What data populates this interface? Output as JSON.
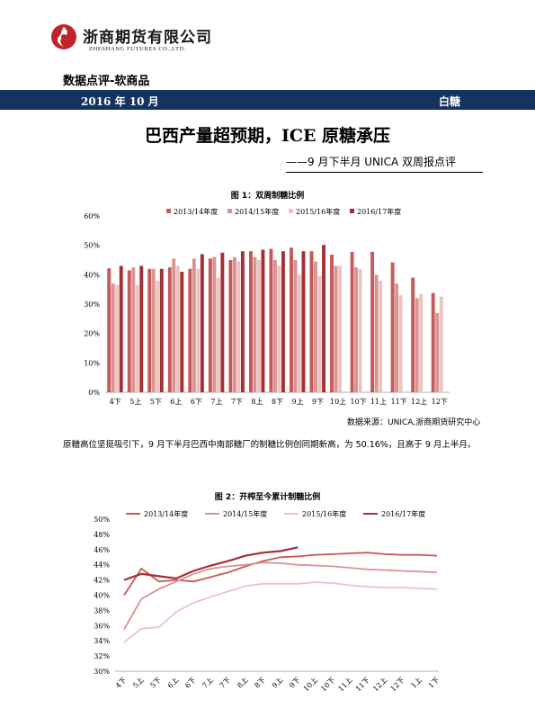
{
  "header": {
    "company_cn": "浙商期货有限公司",
    "company_en": "ZHESHANG FUTURES CO.,LTD."
  },
  "section_title": "数据点评-软商品",
  "banner": {
    "date": "2016 年 10 月",
    "commodity": "白糖"
  },
  "title": "巴西产量超预期，ICE 原糖承压",
  "subtitle": "——9 月下半月 UNICA 双周报点评",
  "source_note": "数据来源：UNICA,浙商期货研究中心",
  "paragraph": "原糖高位坚挺吸引下，9 月下半月巴西中南部糖厂的制糖比例创同期新高，为 50.16%，且高于 9 月上半月。",
  "colors": {
    "banner": "#15335e",
    "logo": "#c0242b",
    "s2013": "#c8585a",
    "s2014": "#d99492",
    "s2015": "#ecc3c1",
    "s2016": "#a33036"
  },
  "chart_data": [
    {
      "type": "bar",
      "title": "图 1：双周制糖比例",
      "legend_position": "top",
      "ylim": [
        0,
        60
      ],
      "yticks": [
        "0%",
        "10%",
        "20%",
        "30%",
        "40%",
        "50%",
        "60%"
      ],
      "categories": [
        "4下",
        "5上",
        "5下",
        "6上",
        "6下",
        "7上",
        "7下",
        "8上",
        "8下",
        "9上",
        "9下",
        "10上",
        "10下",
        "11上",
        "11下",
        "12上",
        "12下"
      ],
      "series": [
        {
          "name": "2013/14年度",
          "values": [
            42.2,
            41.5,
            42.0,
            42.5,
            42.0,
            45.5,
            45.0,
            48.0,
            48.8,
            49.2,
            48.0,
            46.8,
            47.8,
            47.8,
            44.2,
            39.0,
            33.8
          ]
        },
        {
          "name": "2014/15年度",
          "values": [
            37.0,
            42.5,
            42.0,
            45.5,
            45.5,
            46.0,
            46.0,
            46.0,
            45.0,
            45.0,
            44.5,
            43.0,
            42.5,
            40.0,
            37.0,
            32.0,
            27.0
          ]
        },
        {
          "name": "2015/16年度",
          "values": [
            36.5,
            36.5,
            38.0,
            43.0,
            42.0,
            39.0,
            44.5,
            45.0,
            43.0,
            40.0,
            39.5,
            43.0,
            42.0,
            38.0,
            33.0,
            33.5,
            32.5
          ]
        },
        {
          "name": "2016/17年度",
          "values": [
            43.0,
            43.0,
            42.0,
            41.0,
            47.0,
            47.5,
            48.0,
            48.5,
            48.0,
            48.0,
            50.16,
            null,
            null,
            null,
            null,
            null,
            null
          ]
        }
      ]
    },
    {
      "type": "line",
      "title": "图 2：开榨至今累计制糖比例",
      "legend_position": "top",
      "ylim": [
        30,
        50
      ],
      "yticks": [
        "30%",
        "32%",
        "34%",
        "36%",
        "38%",
        "40%",
        "42%",
        "44%",
        "46%",
        "48%",
        "50%"
      ],
      "categories": [
        "4下",
        "5上",
        "5下",
        "6上",
        "6下",
        "7上",
        "7下",
        "8上",
        "8下",
        "9上",
        "9下",
        "10上",
        "10下",
        "11上",
        "11下",
        "12上",
        "12下",
        "1上",
        "1下"
      ],
      "series": [
        {
          "name": "2013/14年度",
          "values": [
            40.0,
            43.5,
            41.8,
            42.0,
            41.8,
            42.4,
            43.0,
            43.8,
            44.5,
            45.0,
            45.1,
            45.3,
            45.4,
            45.5,
            45.6,
            45.4,
            45.3,
            45.3,
            45.2
          ]
        },
        {
          "name": "2014/15年度",
          "values": [
            35.5,
            39.5,
            40.8,
            41.8,
            42.8,
            43.5,
            43.8,
            44.0,
            44.3,
            44.2,
            44.0,
            43.9,
            43.8,
            43.6,
            43.4,
            43.3,
            43.2,
            43.1,
            43.0
          ]
        },
        {
          "name": "2015/16年度",
          "values": [
            33.8,
            35.6,
            35.8,
            37.8,
            39.0,
            39.8,
            40.5,
            41.2,
            41.5,
            41.5,
            41.5,
            41.7,
            41.6,
            41.3,
            41.1,
            41.0,
            41.0,
            40.9,
            40.8
          ]
        },
        {
          "name": "2016/17年度",
          "values": [
            42.0,
            42.8,
            42.5,
            42.2,
            43.2,
            43.9,
            44.5,
            45.2,
            45.6,
            45.8,
            46.3,
            null,
            null,
            null,
            null,
            null,
            null,
            null,
            null
          ]
        }
      ]
    }
  ]
}
